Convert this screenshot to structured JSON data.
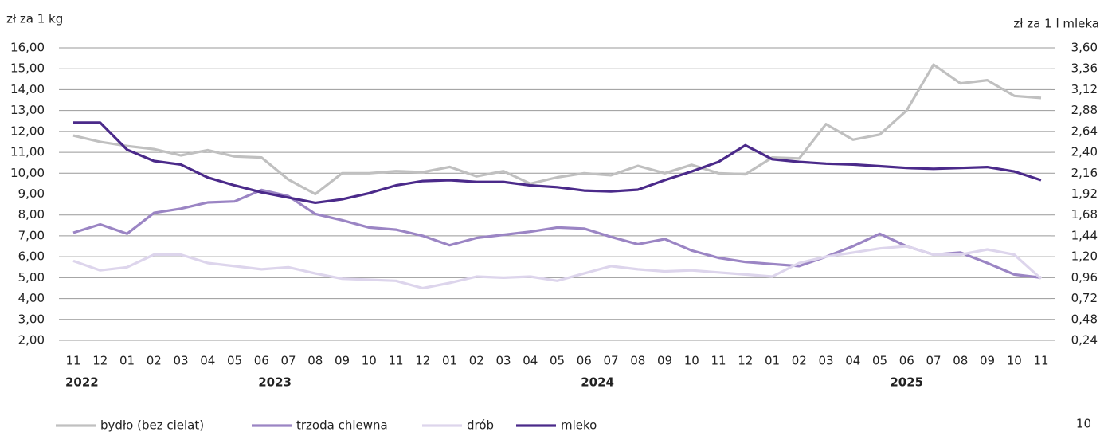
{
  "chart_data": {
    "type": "line",
    "y_axis_label": "zł za 1 kg",
    "y2_axis_label": "zł za 1 l mleka",
    "categories": [
      "11",
      "12",
      "01",
      "02",
      "03",
      "04",
      "05",
      "06",
      "07",
      "08",
      "09",
      "10",
      "11",
      "12",
      "01",
      "02",
      "03",
      "04",
      "05",
      "06",
      "07",
      "08",
      "09",
      "10",
      "11",
      "12",
      "01",
      "02",
      "03",
      "04",
      "05",
      "06",
      "07",
      "08",
      "09",
      "10",
      "11"
    ],
    "years": [
      "2022",
      "2023",
      "2024",
      "2025"
    ],
    "ylim": [
      2,
      16
    ],
    "yticks": [
      {
        "value": 2,
        "label": "2,00"
      },
      {
        "value": 3,
        "label": "3,00"
      },
      {
        "value": 4,
        "label": "4,00"
      },
      {
        "value": 5,
        "label": "5,00"
      },
      {
        "value": 6,
        "label": "6,00"
      },
      {
        "value": 7,
        "label": "7,00"
      },
      {
        "value": 8,
        "label": "8,00"
      },
      {
        "value": 9,
        "label": "9,00"
      },
      {
        "value": 10,
        "label": "10,00"
      },
      {
        "value": 11,
        "label": "11,00"
      },
      {
        "value": 12,
        "label": "12,00"
      },
      {
        "value": 13,
        "label": "13,00"
      },
      {
        "value": 14,
        "label": "14,00"
      },
      {
        "value": 15,
        "label": "15,00"
      },
      {
        "value": 16,
        "label": "16,00"
      }
    ],
    "y2lim": [
      0.24,
      3.6
    ],
    "y2ticks": [
      {
        "value": 0.24,
        "label": "0,24"
      },
      {
        "value": 0.48,
        "label": "0,48"
      },
      {
        "value": 0.72,
        "label": "0,72"
      },
      {
        "value": 0.96,
        "label": "0,96"
      },
      {
        "value": 1.2,
        "label": "1,20"
      },
      {
        "value": 1.44,
        "label": "1,44"
      },
      {
        "value": 1.68,
        "label": "1,68"
      },
      {
        "value": 1.92,
        "label": "1,92"
      },
      {
        "value": 2.16,
        "label": "2,16"
      },
      {
        "value": 2.4,
        "label": "2,40"
      },
      {
        "value": 2.64,
        "label": "2,64"
      },
      {
        "value": 2.88,
        "label": "2,88"
      },
      {
        "value": 3.12,
        "label": "3,12"
      },
      {
        "value": 3.36,
        "label": "3,36"
      },
      {
        "value": 3.6,
        "label": "3,60"
      }
    ],
    "grid": true,
    "legend": "bottom-left",
    "series": [
      {
        "name": "bydło (bez cielat)",
        "color": "#c0c0c0",
        "values": [
          11.8,
          11.5,
          11.3,
          11.15,
          10.85,
          11.1,
          10.8,
          10.75,
          9.7,
          9.0,
          10.0,
          10.0,
          10.1,
          10.05,
          10.3,
          9.85,
          10.1,
          9.5,
          9.8,
          10.0,
          9.9,
          10.35,
          10.0,
          10.4,
          10.0,
          9.95,
          10.75,
          10.7,
          12.35,
          11.6,
          11.85,
          13.0,
          15.2,
          14.3,
          14.45,
          13.7,
          13.6
        ]
      },
      {
        "name": "trzoda chlewna",
        "color": "#9b85c4",
        "values": [
          7.15,
          7.55,
          7.1,
          8.1,
          8.3,
          8.6,
          8.65,
          9.2,
          8.9,
          8.05,
          7.75,
          7.4,
          7.3,
          7.0,
          6.55,
          6.9,
          7.05,
          7.2,
          7.4,
          7.35,
          6.95,
          6.6,
          6.85,
          6.3,
          5.95,
          5.75,
          5.65,
          5.55,
          6.0,
          6.5,
          7.1,
          6.5,
          6.1,
          6.2,
          5.7,
          5.15,
          5.0
        ]
      },
      {
        "name": "drób",
        "color": "#ddd5ec",
        "values": [
          5.8,
          5.35,
          5.5,
          6.1,
          6.1,
          5.7,
          5.55,
          5.4,
          5.5,
          5.2,
          4.95,
          4.9,
          4.85,
          4.5,
          4.75,
          5.05,
          5.0,
          5.05,
          4.85,
          5.2,
          5.55,
          5.4,
          5.3,
          5.35,
          5.25,
          5.15,
          5.05,
          5.7,
          6.0,
          6.2,
          6.4,
          6.5,
          6.1,
          6.1,
          6.35,
          6.1,
          4.95
        ]
      },
      {
        "name": "mleko",
        "color": "#4b2a8a",
        "axis": "y2",
        "values": [
          2.74,
          2.74,
          2.43,
          2.3,
          2.26,
          2.11,
          2.02,
          1.94,
          1.88,
          1.82,
          1.86,
          1.93,
          2.02,
          2.07,
          2.08,
          2.06,
          2.06,
          2.02,
          2.0,
          1.96,
          1.95,
          1.97,
          2.08,
          2.18,
          2.29,
          2.48,
          2.32,
          2.29,
          2.27,
          2.26,
          2.24,
          2.22,
          2.21,
          2.22,
          2.23,
          2.18,
          2.08
        ]
      }
    ],
    "page_number": "10"
  }
}
